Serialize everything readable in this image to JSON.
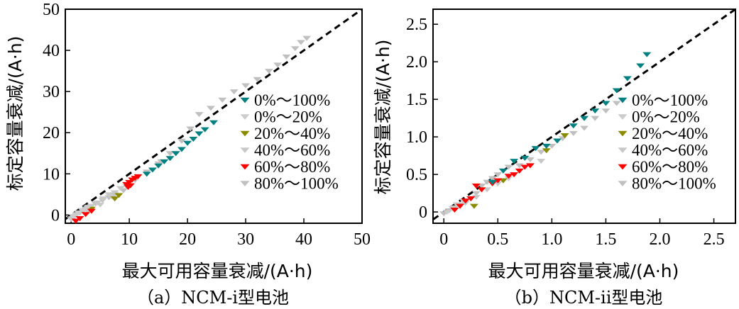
{
  "chart_data": [
    {
      "type": "scatter",
      "caption": "（a）NCM-i型电池",
      "xlabel": "最大可用容量衰减/(A·h)",
      "ylabel": "标定容量衰减/(A·h)",
      "xlim": [
        -1,
        50
      ],
      "ylim": [
        -2,
        50
      ],
      "xticks": [
        0,
        10,
        20,
        30,
        40,
        50
      ],
      "yticks": [
        0,
        10,
        20,
        30,
        40,
        50
      ],
      "xtick_labels": [
        "0",
        "10",
        "20",
        "30",
        "40",
        "50"
      ],
      "ytick_labels": [
        "0",
        "10",
        "20",
        "30",
        "40",
        "50"
      ],
      "reference_line": {
        "style": "dashed",
        "color": "#000000",
        "from": [
          -1,
          -1
        ],
        "to": [
          50,
          50
        ]
      },
      "legend_position": "right",
      "series": [
        {
          "name": "80%～100%",
          "color": "#c0c0c0",
          "points": [
            [
              0.2,
              -0.8
            ],
            [
              1.0,
              0.2
            ],
            [
              2.0,
              1.0
            ],
            [
              3.0,
              2.0
            ],
            [
              4.2,
              2.8
            ],
            [
              5.4,
              3.6
            ],
            [
              6.5,
              4.3
            ],
            [
              7.5,
              5.0
            ],
            [
              9.0,
              6.0
            ],
            [
              11.0,
              8.5
            ],
            [
              13.0,
              10.5
            ],
            [
              15.0,
              12.5
            ],
            [
              17.0,
              15.0
            ],
            [
              19.0,
              18.0
            ],
            [
              20.5,
              21.0
            ],
            [
              22.0,
              24.5
            ],
            [
              24.0,
              26.0
            ],
            [
              26.0,
              28.0
            ],
            [
              28.0,
              30.0
            ],
            [
              30.0,
              31.5
            ],
            [
              32.0,
              33.0
            ],
            [
              34.0,
              35.0
            ],
            [
              35.5,
              36.5
            ],
            [
              37.0,
              38.5
            ],
            [
              38.5,
              40.5
            ],
            [
              39.5,
              42.0
            ],
            [
              40.5,
              43.0
            ],
            [
              15.5,
              13.0
            ]
          ]
        },
        {
          "name": "40%～60%",
          "color": "#c8c8c8",
          "points": [
            [
              0.5,
              -0.5
            ],
            [
              1.5,
              0.5
            ],
            [
              2.5,
              1.5
            ],
            [
              3.5,
              2.2
            ],
            [
              4.5,
              3.0
            ],
            [
              5.5,
              4.0
            ],
            [
              6.5,
              5.0
            ],
            [
              7.5,
              5.5
            ],
            [
              8.5,
              6.5
            ],
            [
              9.5,
              7.0
            ],
            [
              3.0,
              0.8
            ],
            [
              5.0,
              2.5
            ],
            [
              7.0,
              4.5
            ]
          ]
        },
        {
          "name": "20%～40%",
          "color": "#8b8b00",
          "points": [
            [
              7.5,
              4.0
            ],
            [
              8.2,
              4.8
            ],
            [
              3.5,
              1.5
            ]
          ]
        },
        {
          "name": "0%～20%",
          "color": "#cccccc",
          "points": [
            [
              0.0,
              -1.0
            ],
            [
              0.3,
              -0.3
            ],
            [
              0.8,
              0.0
            ],
            [
              1.2,
              0.6
            ],
            [
              2.0,
              1.2
            ],
            [
              2.8,
              1.8
            ]
          ]
        },
        {
          "name": "60%～80%",
          "color": "#ff0000",
          "points": [
            [
              0.8,
              -1.4
            ],
            [
              1.5,
              -0.8
            ],
            [
              2.5,
              0.2
            ],
            [
              3.5,
              1.0
            ],
            [
              9.5,
              7.5
            ],
            [
              10.0,
              8.0
            ],
            [
              10.5,
              8.6
            ],
            [
              11.0,
              9.0
            ],
            [
              11.5,
              9.4
            ],
            [
              10.2,
              7.2
            ],
            [
              9.8,
              6.8
            ]
          ]
        },
        {
          "name": "0%～100%",
          "color": "#008080",
          "points": [
            [
              13.0,
              10.0
            ],
            [
              14.0,
              11.0
            ],
            [
              15.0,
              12.0
            ],
            [
              16.0,
              13.0
            ],
            [
              17.0,
              13.8
            ],
            [
              18.0,
              15.0
            ],
            [
              19.0,
              16.0
            ],
            [
              20.0,
              17.5
            ],
            [
              21.0,
              18.5
            ],
            [
              22.0,
              19.8
            ],
            [
              23.0,
              20.8
            ],
            [
              24.5,
              22.5
            ]
          ]
        }
      ]
    },
    {
      "type": "scatter",
      "caption": "（b）NCM-ii型电池",
      "xlabel": "最大可用容量衰减/(A·h)",
      "ylabel": "标定容量衰减/(A·h)",
      "xlim": [
        -0.1,
        2.7
      ],
      "ylim": [
        -0.15,
        2.7
      ],
      "xticks": [
        0,
        0.5,
        1.0,
        1.5,
        2.0,
        2.5
      ],
      "yticks": [
        0,
        0.5,
        1.0,
        1.5,
        2.0,
        2.5
      ],
      "xtick_labels": [
        "0",
        "0.5",
        "1.0",
        "1.5",
        "2.0",
        "2.5"
      ],
      "ytick_labels": [
        "0",
        "0.5",
        "1.0",
        "1.5",
        "2.0",
        "2.5"
      ],
      "reference_line": {
        "style": "dashed",
        "color": "#000000",
        "from": [
          -0.1,
          -0.1
        ],
        "to": [
          2.7,
          2.7
        ]
      },
      "legend_position": "right",
      "series": [
        {
          "name": "80%～100%",
          "color": "#c0c0c0",
          "points": [
            [
              0.0,
              -0.02
            ],
            [
              0.05,
              0.02
            ],
            [
              0.1,
              0.06
            ],
            [
              0.15,
              0.1
            ],
            [
              0.2,
              0.14
            ],
            [
              0.3,
              0.25
            ],
            [
              0.35,
              0.35
            ],
            [
              0.4,
              0.4
            ],
            [
              0.45,
              0.45
            ],
            [
              0.5,
              0.5
            ],
            [
              0.55,
              0.55
            ],
            [
              0.6,
              0.6
            ],
            [
              0.7,
              0.62
            ],
            [
              0.8,
              0.7
            ],
            [
              0.9,
              0.8
            ],
            [
              1.0,
              0.88
            ],
            [
              1.1,
              0.98
            ],
            [
              1.2,
              1.05
            ],
            [
              1.3,
              1.12
            ],
            [
              1.4,
              1.25
            ],
            [
              1.5,
              1.35
            ],
            [
              1.6,
              1.45
            ]
          ]
        },
        {
          "name": "40%～60%",
          "color": "#c8c8c8",
          "points": [
            [
              0.2,
              0.12
            ],
            [
              0.3,
              0.2
            ],
            [
              0.4,
              0.3
            ],
            [
              0.5,
              0.38
            ],
            [
              0.6,
              0.45
            ],
            [
              0.7,
              0.55
            ],
            [
              0.8,
              0.62
            ],
            [
              0.9,
              0.68
            ]
          ]
        },
        {
          "name": "20%～40%",
          "color": "#8b8b00",
          "points": [
            [
              0.28,
              0.08
            ],
            [
              0.55,
              0.42
            ],
            [
              0.95,
              0.82
            ],
            [
              1.12,
              1.02
            ]
          ]
        },
        {
          "name": "0%～20%",
          "color": "#cccccc",
          "points": [
            [
              0.03,
              0.0
            ],
            [
              0.08,
              0.05
            ],
            [
              0.12,
              0.1
            ],
            [
              0.18,
              0.15
            ]
          ]
        },
        {
          "name": "60%～80%",
          "color": "#ff0000",
          "points": [
            [
              0.1,
              0.03
            ],
            [
              0.15,
              0.08
            ],
            [
              0.2,
              0.15
            ],
            [
              0.3,
              0.35
            ],
            [
              0.35,
              0.3
            ],
            [
              0.45,
              0.38
            ],
            [
              0.5,
              0.42
            ],
            [
              0.6,
              0.48
            ],
            [
              0.65,
              0.5
            ],
            [
              0.7,
              0.55
            ],
            [
              0.75,
              0.6
            ],
            [
              0.8,
              0.62
            ],
            [
              0.25,
              0.18
            ]
          ]
        },
        {
          "name": "0%～100%",
          "color": "#008080",
          "points": [
            [
              0.45,
              0.4
            ],
            [
              0.55,
              0.55
            ],
            [
              0.65,
              0.68
            ],
            [
              0.75,
              0.72
            ],
            [
              0.85,
              0.85
            ],
            [
              0.95,
              0.88
            ],
            [
              1.05,
              0.95
            ],
            [
              1.2,
              1.15
            ],
            [
              1.3,
              1.25
            ],
            [
              1.4,
              1.35
            ],
            [
              1.5,
              1.45
            ],
            [
              1.6,
              1.62
            ],
            [
              1.7,
              1.78
            ],
            [
              1.82,
              1.95
            ],
            [
              1.88,
              2.1
            ]
          ]
        }
      ]
    }
  ]
}
